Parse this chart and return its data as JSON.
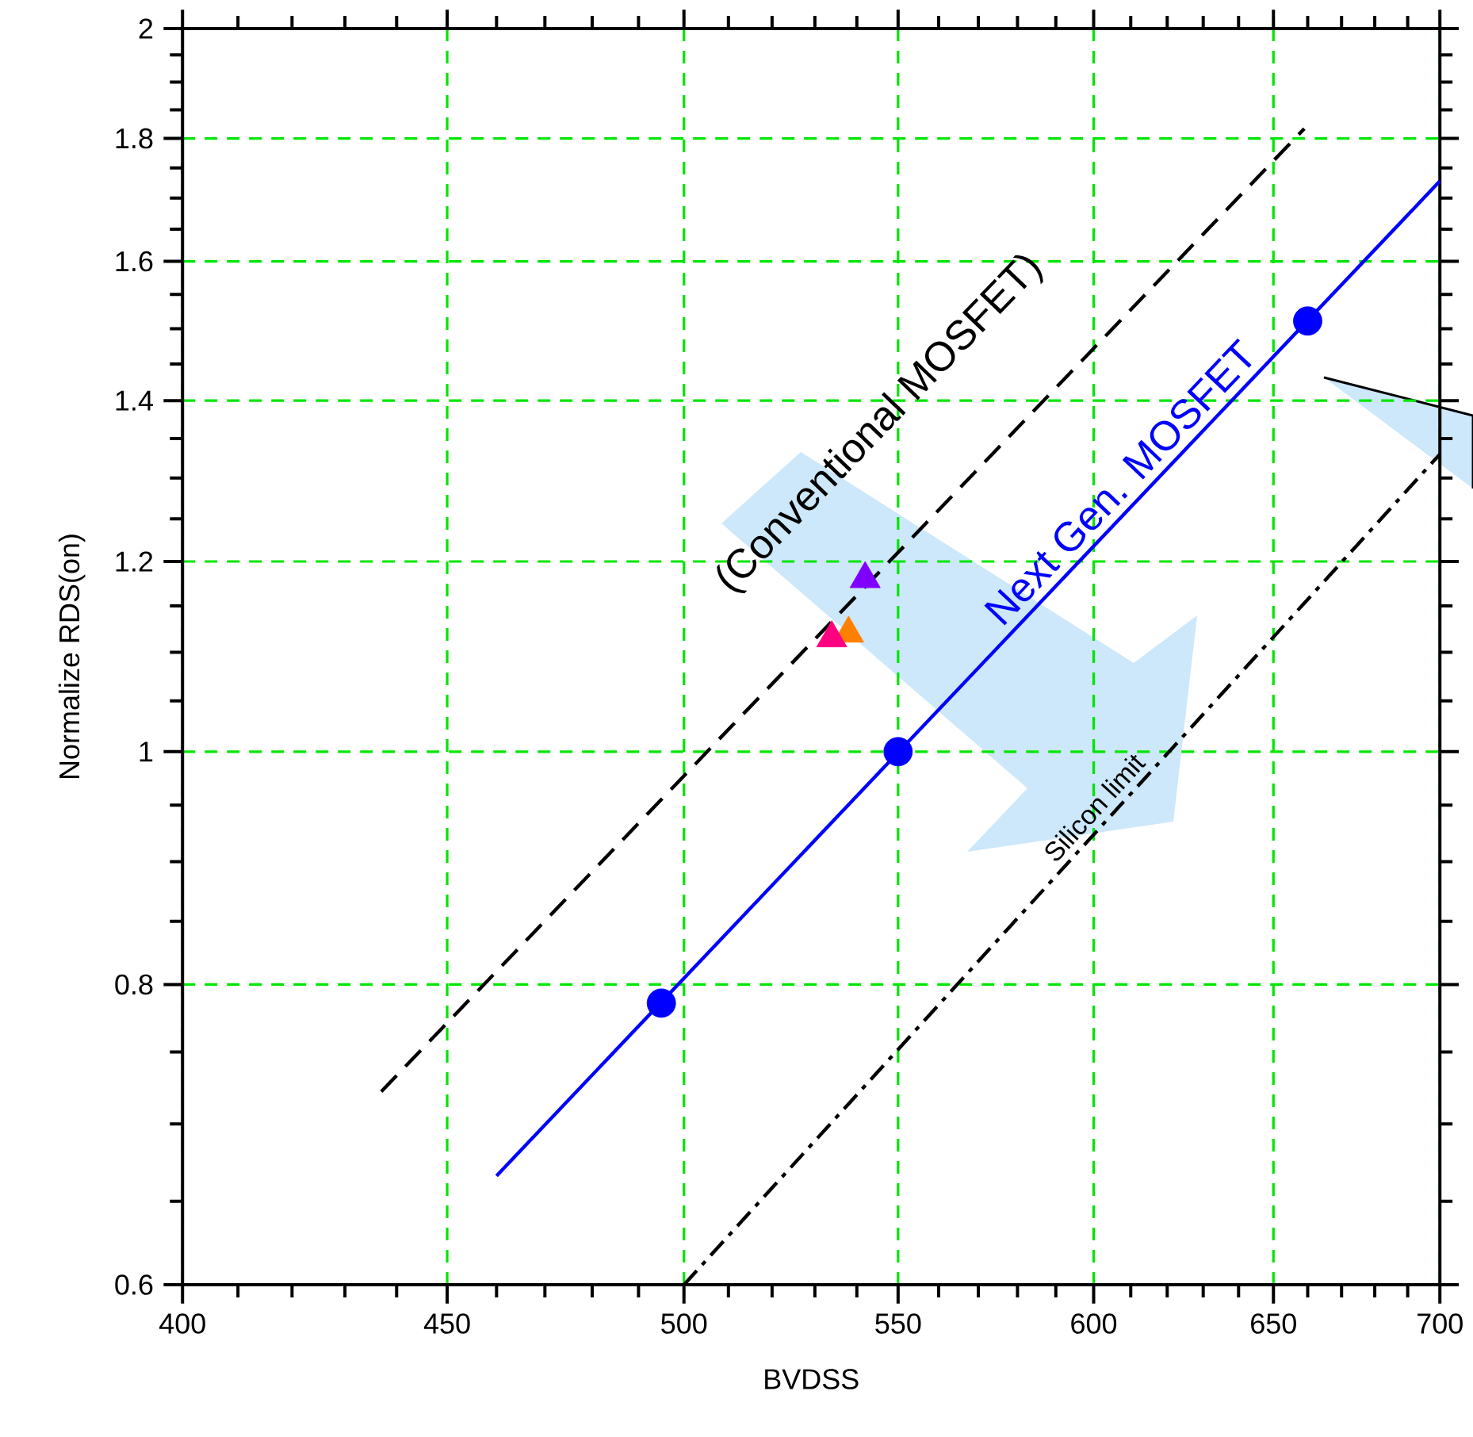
{
  "chart_data": {
    "type": "line",
    "xlabel": "BVDSS",
    "ylabel": "Normalize RDS(on)",
    "log": "xy",
    "grid": true,
    "xlim": [
      400,
      700
    ],
    "ylim": [
      0.6,
      2
    ],
    "xticks": [
      400,
      {
        "value": 410,
        "label": null
      },
      {
        "value": 420,
        "label": null
      },
      {
        "value": 430,
        "label": null
      },
      {
        "value": 440,
        "label": null
      },
      450,
      {
        "value": 460,
        "label": null
      },
      {
        "value": 470,
        "label": null
      },
      {
        "value": 480,
        "label": null
      },
      {
        "value": 490,
        "label": null
      },
      500,
      {
        "value": 510,
        "label": null
      },
      {
        "value": 520,
        "label": null
      },
      {
        "value": 530,
        "label": null
      },
      {
        "value": 540,
        "label": null
      },
      550,
      {
        "value": 560,
        "label": null
      },
      {
        "value": 570,
        "label": null
      },
      {
        "value": 580,
        "label": null
      },
      {
        "value": 590,
        "label": null
      },
      600,
      {
        "value": 610,
        "label": null
      },
      {
        "value": 620,
        "label": null
      },
      {
        "value": 630,
        "label": null
      },
      {
        "value": 640,
        "label": null
      },
      650,
      {
        "value": 660,
        "label": null
      },
      {
        "value": 670,
        "label": null
      },
      {
        "value": 680,
        "label": null
      },
      {
        "value": 690,
        "label": null
      },
      700
    ],
    "yticks": [
      0.6,
      {
        "value": 0.65,
        "label": null
      },
      {
        "value": 0.7,
        "label": null
      },
      {
        "value": 0.75,
        "label": null
      },
      0.8,
      {
        "value": 0.85,
        "label": null
      },
      {
        "value": 0.9,
        "label": null
      },
      {
        "value": 0.95,
        "label": null
      },
      1,
      {
        "value": 1.05,
        "label": null
      },
      {
        "value": 1.1,
        "label": null
      },
      {
        "value": 1.15,
        "label": null
      },
      1.2,
      {
        "value": 1.25,
        "label": null
      },
      {
        "value": 1.3,
        "label": null
      },
      {
        "value": 1.35,
        "label": null
      },
      1.4,
      {
        "value": 1.45,
        "label": null
      },
      {
        "value": 1.5,
        "label": null
      },
      {
        "value": 1.55,
        "label": null
      },
      1.6,
      {
        "value": 1.65,
        "label": null
      },
      {
        "value": 1.7,
        "label": null
      },
      {
        "value": 1.75,
        "label": null
      },
      1.8,
      {
        "value": 1.85,
        "label": null
      },
      {
        "value": 1.9,
        "label": null
      },
      {
        "value": 1.95,
        "label": null
      },
      2
    ],
    "series": [
      {
        "name": "(Conventional MOSFET)",
        "line_style": "dashed",
        "marker": "none",
        "color": "#000000",
        "x": [
          437,
          659
        ],
        "values": [
          0.722,
          1.817
        ]
      },
      {
        "name": "Next Gen. MOSFET",
        "line_style": "solid",
        "marker": "none",
        "color": "#0000ff",
        "x": [
          460,
          700
        ],
        "values": [
          0.666,
          1.728
        ]
      },
      {
        "type": "scatter",
        "marker": "circle",
        "color": "#0000ff",
        "x": [
          495,
          550,
          660
        ],
        "values": [
          0.786,
          1.0,
          1.511
        ]
      },
      {
        "name": "Silicon limit",
        "line_style": "dashdot",
        "marker": "none",
        "color": "#000000",
        "x": [
          500,
          700
        ],
        "values": [
          0.6,
          1.33
        ]
      },
      {
        "type": "scatter",
        "marker": "triangle",
        "colors": [
          "#ff8000",
          "#ff0080",
          "#8000ff"
        ],
        "x": [
          538,
          534,
          542
        ],
        "values": [
          1.12,
          1.115,
          1.18
        ]
      }
    ]
  }
}
